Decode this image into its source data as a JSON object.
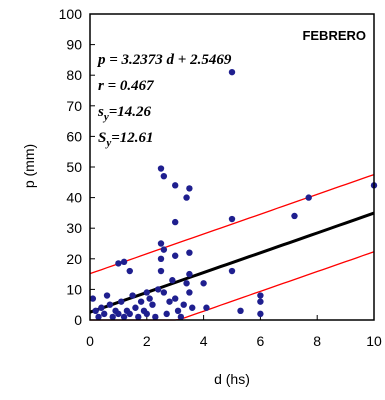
{
  "chart_data": {
    "type": "scatter",
    "title": "FEBRERO",
    "xlabel": "d (hs)",
    "ylabel": "p (mm)",
    "xlim": [
      0,
      10
    ],
    "ylim": [
      0,
      100
    ],
    "xticks": [
      0,
      2,
      4,
      6,
      8,
      10
    ],
    "yticks": [
      0,
      10,
      20,
      30,
      40,
      50,
      60,
      70,
      80,
      90,
      100
    ],
    "grid": false,
    "annotations": {
      "equation": "p = 3.2373 d + 2.5469",
      "r": "r = 0.467",
      "sy_main": "s",
      "sy_sub": "y",
      "sy_value": "=14.26",
      "Sy_main": "S",
      "Sy_sub": "y",
      "Sy_value": "=12.61"
    },
    "regression": {
      "slope": 3.2373,
      "intercept": 2.5469,
      "offset": 12.61
    },
    "colors": {
      "points": "#1f1f8f",
      "regression": "#000000",
      "bounds": "#ff0000"
    },
    "points": [
      {
        "x": 0.1,
        "y": 7
      },
      {
        "x": 0.2,
        "y": 3
      },
      {
        "x": 0.3,
        "y": 1
      },
      {
        "x": 0.4,
        "y": 4
      },
      {
        "x": 0.5,
        "y": 2
      },
      {
        "x": 0.6,
        "y": 8
      },
      {
        "x": 0.7,
        "y": 5
      },
      {
        "x": 0.8,
        "y": 1
      },
      {
        "x": 0.9,
        "y": 3
      },
      {
        "x": 1.0,
        "y": 2
      },
      {
        "x": 1.0,
        "y": 18.5
      },
      {
        "x": 1.1,
        "y": 6
      },
      {
        "x": 1.2,
        "y": 1
      },
      {
        "x": 1.2,
        "y": 19
      },
      {
        "x": 1.3,
        "y": 3
      },
      {
        "x": 1.4,
        "y": 16
      },
      {
        "x": 1.4,
        "y": 2
      },
      {
        "x": 1.5,
        "y": 8
      },
      {
        "x": 1.6,
        "y": 4
      },
      {
        "x": 1.7,
        "y": 1
      },
      {
        "x": 1.8,
        "y": 6
      },
      {
        "x": 1.9,
        "y": 3
      },
      {
        "x": 2.0,
        "y": 9
      },
      {
        "x": 2.0,
        "y": 2
      },
      {
        "x": 2.1,
        "y": 7
      },
      {
        "x": 2.2,
        "y": 5
      },
      {
        "x": 2.3,
        "y": 1
      },
      {
        "x": 2.4,
        "y": 10
      },
      {
        "x": 2.5,
        "y": 49.5
      },
      {
        "x": 2.5,
        "y": 25
      },
      {
        "x": 2.5,
        "y": 20
      },
      {
        "x": 2.5,
        "y": 16
      },
      {
        "x": 2.6,
        "y": 47
      },
      {
        "x": 2.6,
        "y": 23
      },
      {
        "x": 2.6,
        "y": 9
      },
      {
        "x": 2.7,
        "y": 2
      },
      {
        "x": 2.8,
        "y": 6
      },
      {
        "x": 2.9,
        "y": 13
      },
      {
        "x": 3.0,
        "y": 44
      },
      {
        "x": 3.0,
        "y": 32
      },
      {
        "x": 3.0,
        "y": 21
      },
      {
        "x": 3.0,
        "y": 7
      },
      {
        "x": 3.1,
        "y": 3
      },
      {
        "x": 3.2,
        "y": 1
      },
      {
        "x": 3.3,
        "y": 5
      },
      {
        "x": 3.4,
        "y": 12
      },
      {
        "x": 3.4,
        "y": 40
      },
      {
        "x": 3.5,
        "y": 43
      },
      {
        "x": 3.5,
        "y": 22
      },
      {
        "x": 3.5,
        "y": 15
      },
      {
        "x": 3.5,
        "y": 9
      },
      {
        "x": 3.6,
        "y": 4
      },
      {
        "x": 4.0,
        "y": 12
      },
      {
        "x": 4.1,
        "y": 4
      },
      {
        "x": 5.0,
        "y": 81
      },
      {
        "x": 5.0,
        "y": 33
      },
      {
        "x": 5.0,
        "y": 16
      },
      {
        "x": 5.3,
        "y": 3
      },
      {
        "x": 6.0,
        "y": 8
      },
      {
        "x": 6.0,
        "y": 6
      },
      {
        "x": 6.0,
        "y": 2
      },
      {
        "x": 7.2,
        "y": 34
      },
      {
        "x": 7.7,
        "y": 40
      },
      {
        "x": 10.0,
        "y": 44
      }
    ]
  }
}
